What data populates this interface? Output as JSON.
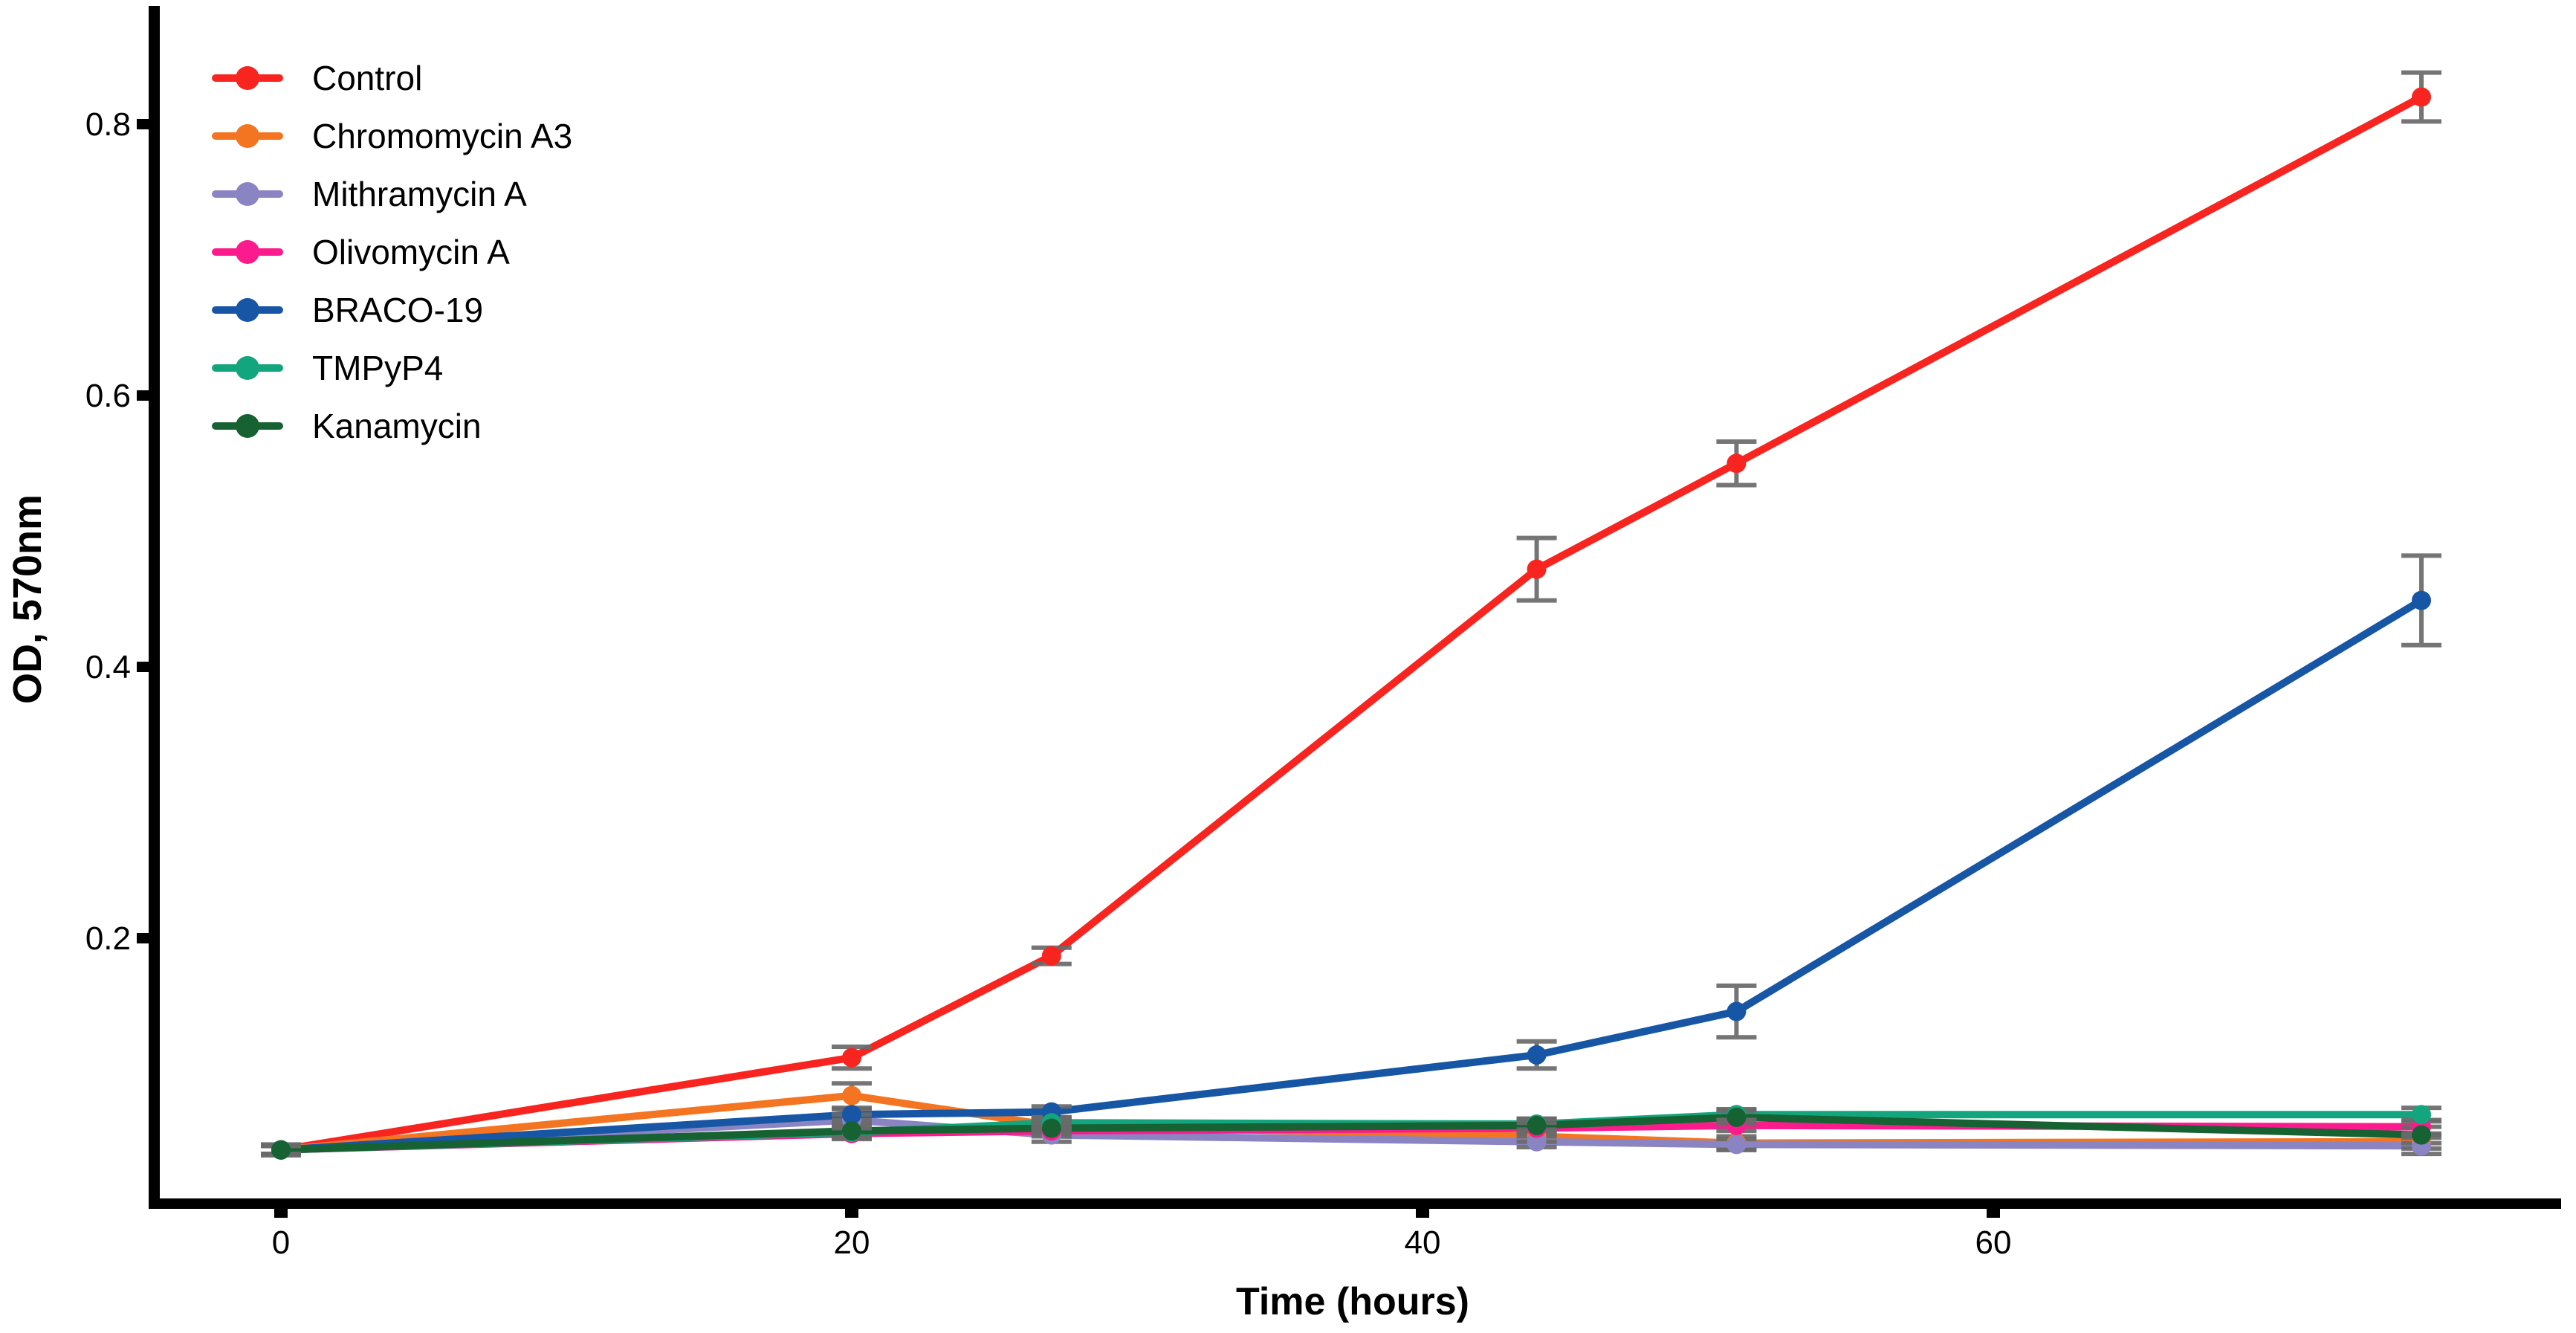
{
  "figure": {
    "background": "#ffffff",
    "axis_color": "#000000",
    "error_bar_color": "#6a6a6a"
  },
  "chart_data": {
    "type": "line",
    "title": "",
    "xlabel": "Time (hours)",
    "ylabel": "OD, 570nm",
    "x": [
      0,
      20,
      27,
      44,
      51,
      75
    ],
    "xticks": [
      0,
      20,
      40,
      60
    ],
    "yticks": [
      0.2,
      0.4,
      0.6,
      0.8
    ],
    "xlim": [
      -4.6,
      79.9
    ],
    "ylim": [
      0.0,
      0.887
    ],
    "grid": false,
    "legend_position": "top-left-inside",
    "point_marker": "circle",
    "error_bars": true,
    "series": [
      {
        "name": "Control",
        "color": "#f8241f",
        "values": [
          0.044,
          0.112,
          0.187,
          0.472,
          0.55,
          0.82
        ],
        "errors": [
          0.004,
          0.008,
          0.006,
          0.023,
          0.016,
          0.018
        ]
      },
      {
        "name": "Chromomycin A3",
        "color": "#f47521",
        "values": [
          0.044,
          0.084,
          0.062,
          0.054,
          0.049,
          0.05
        ],
        "errors": [
          0.003,
          0.009,
          0.004,
          0.004,
          0.005,
          0.005
        ]
      },
      {
        "name": "Mithramycin A",
        "color": "#8a84c3",
        "values": [
          0.044,
          0.066,
          0.055,
          0.05,
          0.048,
          0.047
        ],
        "errors": [
          0.003,
          0.004,
          0.005,
          0.004,
          0.004,
          0.006
        ]
      },
      {
        "name": "Olivomycin A",
        "color": "#fb1b8d",
        "values": [
          0.044,
          0.056,
          0.058,
          0.06,
          0.062,
          0.061
        ],
        "errors": [
          0.003,
          0.004,
          0.004,
          0.004,
          0.004,
          0.005
        ]
      },
      {
        "name": "BRACO-19",
        "color": "#1656a5",
        "values": [
          0.044,
          0.07,
          0.072,
          0.114,
          0.146,
          0.449
        ],
        "errors": [
          0.003,
          0.004,
          0.004,
          0.01,
          0.019,
          0.033
        ]
      },
      {
        "name": "TMPyP4",
        "color": "#13a57d",
        "values": [
          0.044,
          0.057,
          0.064,
          0.063,
          0.07,
          0.07
        ],
        "errors": [
          0.003,
          0.004,
          0.004,
          0.004,
          0.004,
          0.005
        ]
      },
      {
        "name": "Kanamycin",
        "color": "#166233",
        "values": [
          0.044,
          0.058,
          0.06,
          0.062,
          0.068,
          0.055
        ],
        "errors": [
          0.003,
          0.005,
          0.004,
          0.005,
          0.005,
          0.006
        ]
      }
    ]
  }
}
